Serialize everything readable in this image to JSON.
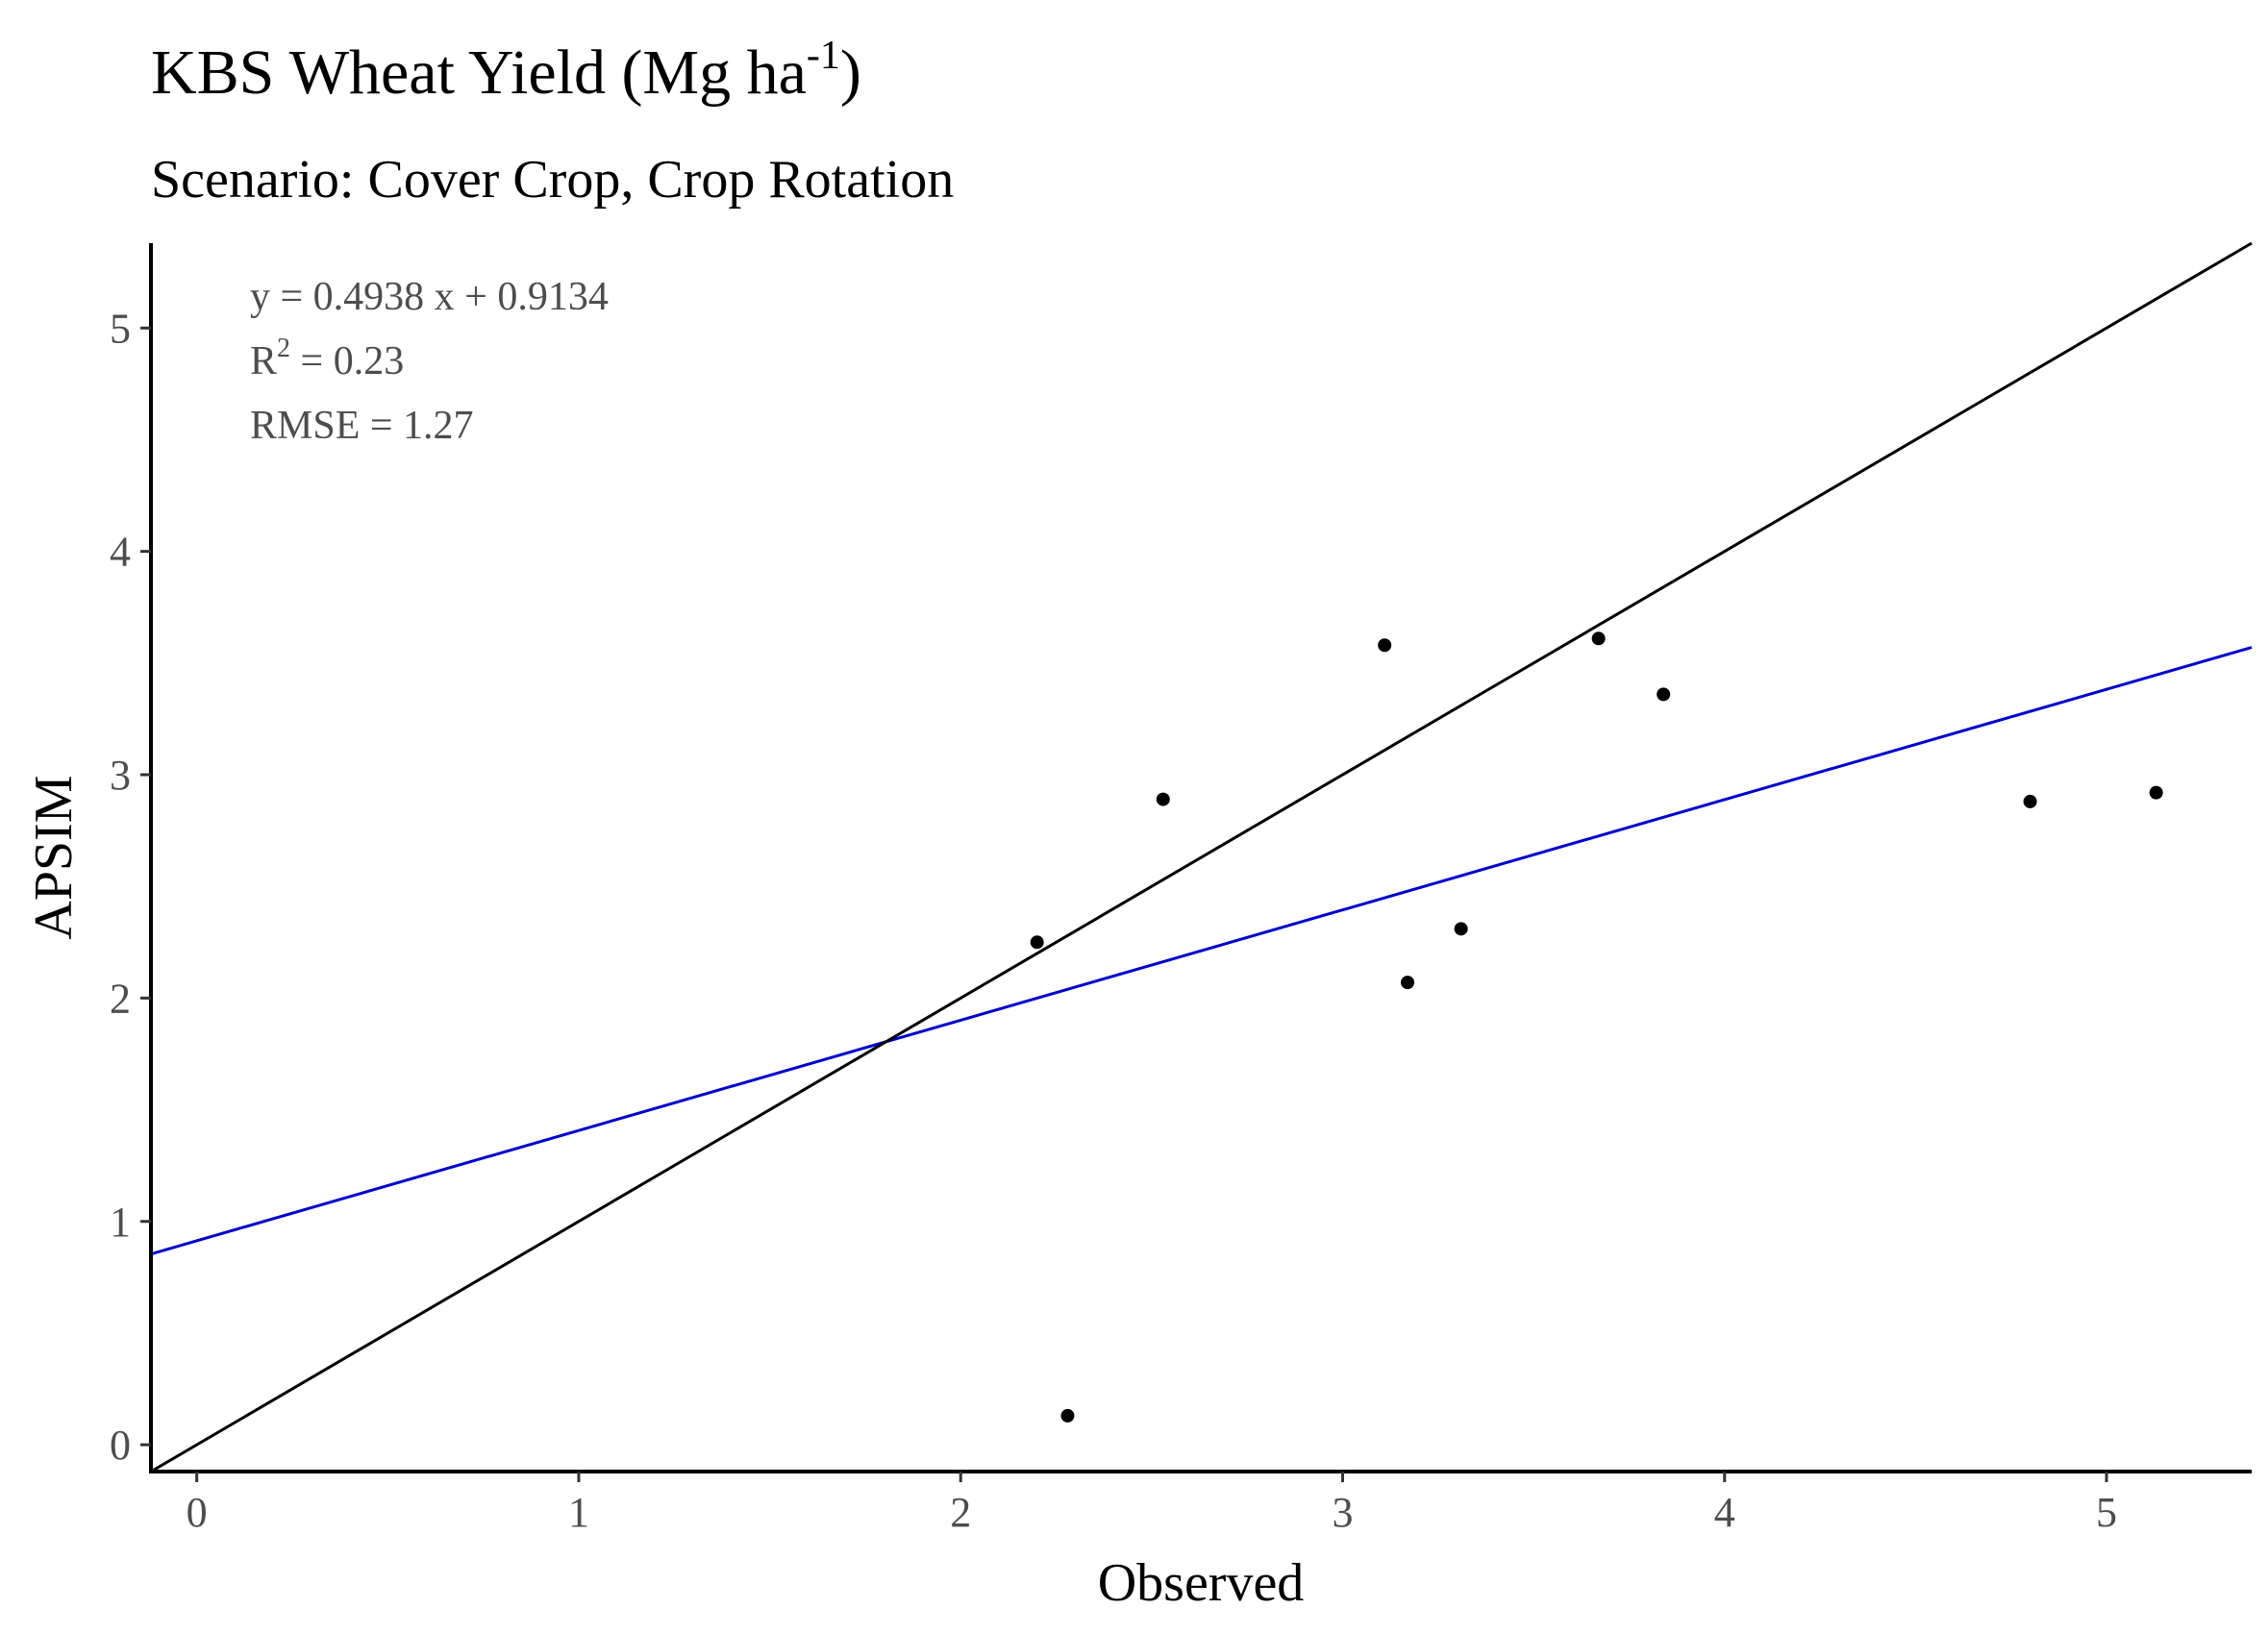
{
  "chart_data": {
    "type": "scatter",
    "title": "KBS Wheat Yield (Mg ha",
    "title_superscript": "-1",
    "title_suffix": ")",
    "subtitle": "Scenario: Cover Crop, Crop Rotation",
    "xlabel": "Observed",
    "ylabel": "APSIM",
    "xlim": [
      -0.12,
      5.38
    ],
    "ylim": [
      -0.12,
      5.38
    ],
    "x_ticks": [
      0,
      1,
      2,
      3,
      4,
      5
    ],
    "y_ticks": [
      0,
      1,
      2,
      3,
      4,
      5
    ],
    "x_tick_labels": [
      "0",
      "1",
      "2",
      "3",
      "4",
      "5"
    ],
    "y_tick_labels": [
      "0",
      "1",
      "2",
      "3",
      "4",
      "5"
    ],
    "grid": false,
    "points": [
      {
        "x": 2.2,
        "y": 2.25
      },
      {
        "x": 2.28,
        "y": 0.13
      },
      {
        "x": 2.53,
        "y": 2.89
      },
      {
        "x": 3.11,
        "y": 3.58
      },
      {
        "x": 3.17,
        "y": 2.07
      },
      {
        "x": 3.31,
        "y": 2.31
      },
      {
        "x": 3.67,
        "y": 3.61
      },
      {
        "x": 3.84,
        "y": 3.36
      },
      {
        "x": 4.8,
        "y": 2.88
      },
      {
        "x": 5.13,
        "y": 2.92
      }
    ],
    "lines": [
      {
        "kind": "identity",
        "slope": 1.0,
        "intercept": 0.0,
        "color": "#000000"
      },
      {
        "kind": "regression",
        "slope": 0.4938,
        "intercept": 0.9134,
        "color": "#0000cc"
      }
    ],
    "annotations": {
      "equation": "y = 0.4938 x +  0.9134",
      "r2_prefix": "R",
      "r2_superscript": "2",
      "r2_suffix": " = 0.23",
      "rmse": "RMSE = 1.27"
    },
    "point_color": "#000000"
  }
}
